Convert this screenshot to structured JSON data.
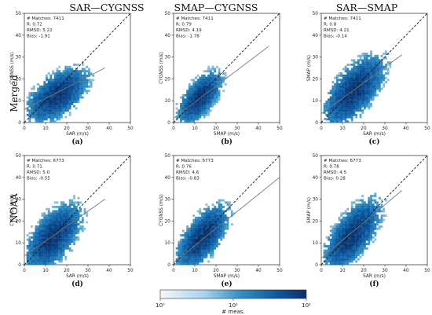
{
  "column_titles": [
    "SAR—CYGNSS",
    "SMAP—CYGNSS",
    "SAR—SMAP"
  ],
  "row_labels": [
    "Merged",
    "NOAA"
  ],
  "colorbar": {
    "label": "# meas.",
    "ticks": [
      "10⁰",
      "10¹",
      "10²"
    ],
    "scale": "log",
    "range": [
      1,
      100
    ],
    "color_low": "#f3f8fc",
    "color_high": "#08306b"
  },
  "chart_data": [
    {
      "type": "heatmap",
      "panel": "(a)",
      "row": "Merged",
      "xlabel": "SAR (m/s)",
      "ylabel": "CYGNSS (m/s)",
      "xlim": [
        0,
        50
      ],
      "ylim": [
        0,
        50
      ],
      "xticks": [
        "0",
        "10",
        "20",
        "30",
        "40",
        "50"
      ],
      "yticks": [
        "0",
        "10",
        "20",
        "30",
        "40",
        "50"
      ],
      "stats": [
        "# Matches: 7411",
        "R: 0.72",
        "RMSD: 5.22",
        "Bias: -1.91"
      ],
      "one_to_one_line": true,
      "fit_line": {
        "x": [
          0,
          38
        ],
        "y": [
          6.0,
          25.0
        ]
      },
      "density_center": {
        "x": 15,
        "y": 12
      },
      "density_spread": {
        "x": 7,
        "y": 5
      }
    },
    {
      "type": "heatmap",
      "panel": "(b)",
      "row": "Merged",
      "xlabel": "SMAP (m/s)",
      "ylabel": "CYGNSS (m/s)",
      "xlim": [
        0,
        50
      ],
      "ylim": [
        0,
        50
      ],
      "xticks": [
        "0",
        "10",
        "20",
        "30",
        "40",
        "50"
      ],
      "yticks": [
        "0",
        "10",
        "20",
        "30",
        "40",
        "50"
      ],
      "stats": [
        "# Matches: 7411",
        "R: 0.79",
        "RMSD: 4.19",
        "Bias: -1.78"
      ],
      "one_to_one_line": true,
      "fit_line": {
        "x": [
          0,
          45
        ],
        "y": [
          2.0,
          35.0
        ]
      },
      "density_center": {
        "x": 12,
        "y": 11
      },
      "density_spread": {
        "x": 5,
        "y": 4.5
      }
    },
    {
      "type": "heatmap",
      "panel": "(c)",
      "row": "Merged",
      "xlabel": "SAR (m/s)",
      "ylabel": "SMAP (m/s)",
      "xlim": [
        0,
        50
      ],
      "ylim": [
        0,
        50
      ],
      "xticks": [
        "0",
        "10",
        "20",
        "30",
        "40",
        "50"
      ],
      "yticks": [
        "0",
        "10",
        "20",
        "30",
        "40",
        "50"
      ],
      "stats": [
        "# Matches: 7411",
        "R: 0.8",
        "RMSD: 4.21",
        "Bias: -0.14"
      ],
      "one_to_one_line": true,
      "fit_line": {
        "x": [
          0,
          38
        ],
        "y": [
          4.0,
          31.0
        ]
      },
      "density_center": {
        "x": 15,
        "y": 14
      },
      "density_spread": {
        "x": 7,
        "y": 6
      }
    },
    {
      "type": "heatmap",
      "panel": "(d)",
      "row": "NOAA",
      "xlabel": "SAR (m/s)",
      "ylabel": "CYGNSS (m/s)",
      "xlim": [
        0,
        50
      ],
      "ylim": [
        0,
        50
      ],
      "xticks": [
        "0",
        "10",
        "20",
        "30",
        "40",
        "50"
      ],
      "yticks": [
        "0",
        "10",
        "20",
        "30",
        "40",
        "50"
      ],
      "stats": [
        "# Matches: 6773",
        "R: 0.71",
        "RMSD: 5.0",
        "Bias: -0.55"
      ],
      "one_to_one_line": true,
      "fit_line": {
        "x": [
          0,
          38
        ],
        "y": [
          4.0,
          30.0
        ]
      },
      "density_center": {
        "x": 13,
        "y": 12
      },
      "density_spread": {
        "x": 6.5,
        "y": 6
      }
    },
    {
      "type": "heatmap",
      "panel": "(e)",
      "row": "NOAA",
      "xlabel": "SMAP (m/s)",
      "ylabel": "CYGNSS (m/s)",
      "xlim": [
        0,
        50
      ],
      "ylim": [
        0,
        50
      ],
      "xticks": [
        "0",
        "10",
        "20",
        "30",
        "40",
        "50"
      ],
      "yticks": [
        "0",
        "10",
        "20",
        "30",
        "40",
        "50"
      ],
      "stats": [
        "# Matches: 6773",
        "R: 0.76",
        "RMSD: 4.6",
        "Bias: -0.83"
      ],
      "one_to_one_line": true,
      "fit_line": {
        "x": [
          0,
          50
        ],
        "y": [
          1.0,
          40.0
        ]
      },
      "density_center": {
        "x": 13,
        "y": 12
      },
      "density_spread": {
        "x": 6,
        "y": 5.5
      }
    },
    {
      "type": "heatmap",
      "panel": "(f)",
      "row": "NOAA",
      "xlabel": "SAR (m/s)",
      "ylabel": "SMAP (m/s)",
      "xlim": [
        0,
        50
      ],
      "ylim": [
        0,
        50
      ],
      "xticks": [
        "0",
        "10",
        "20",
        "30",
        "40",
        "50"
      ],
      "yticks": [
        "0",
        "10",
        "20",
        "30",
        "40",
        "50"
      ],
      "stats": [
        "# Matches: 6773",
        "R: 0.78",
        "RMSD: 4.5",
        "Bias: 0.28"
      ],
      "one_to_one_line": true,
      "fit_line": {
        "x": [
          0,
          38
        ],
        "y": [
          3.0,
          34.0
        ]
      },
      "density_center": {
        "x": 14,
        "y": 13
      },
      "density_spread": {
        "x": 6.5,
        "y": 6
      }
    }
  ]
}
